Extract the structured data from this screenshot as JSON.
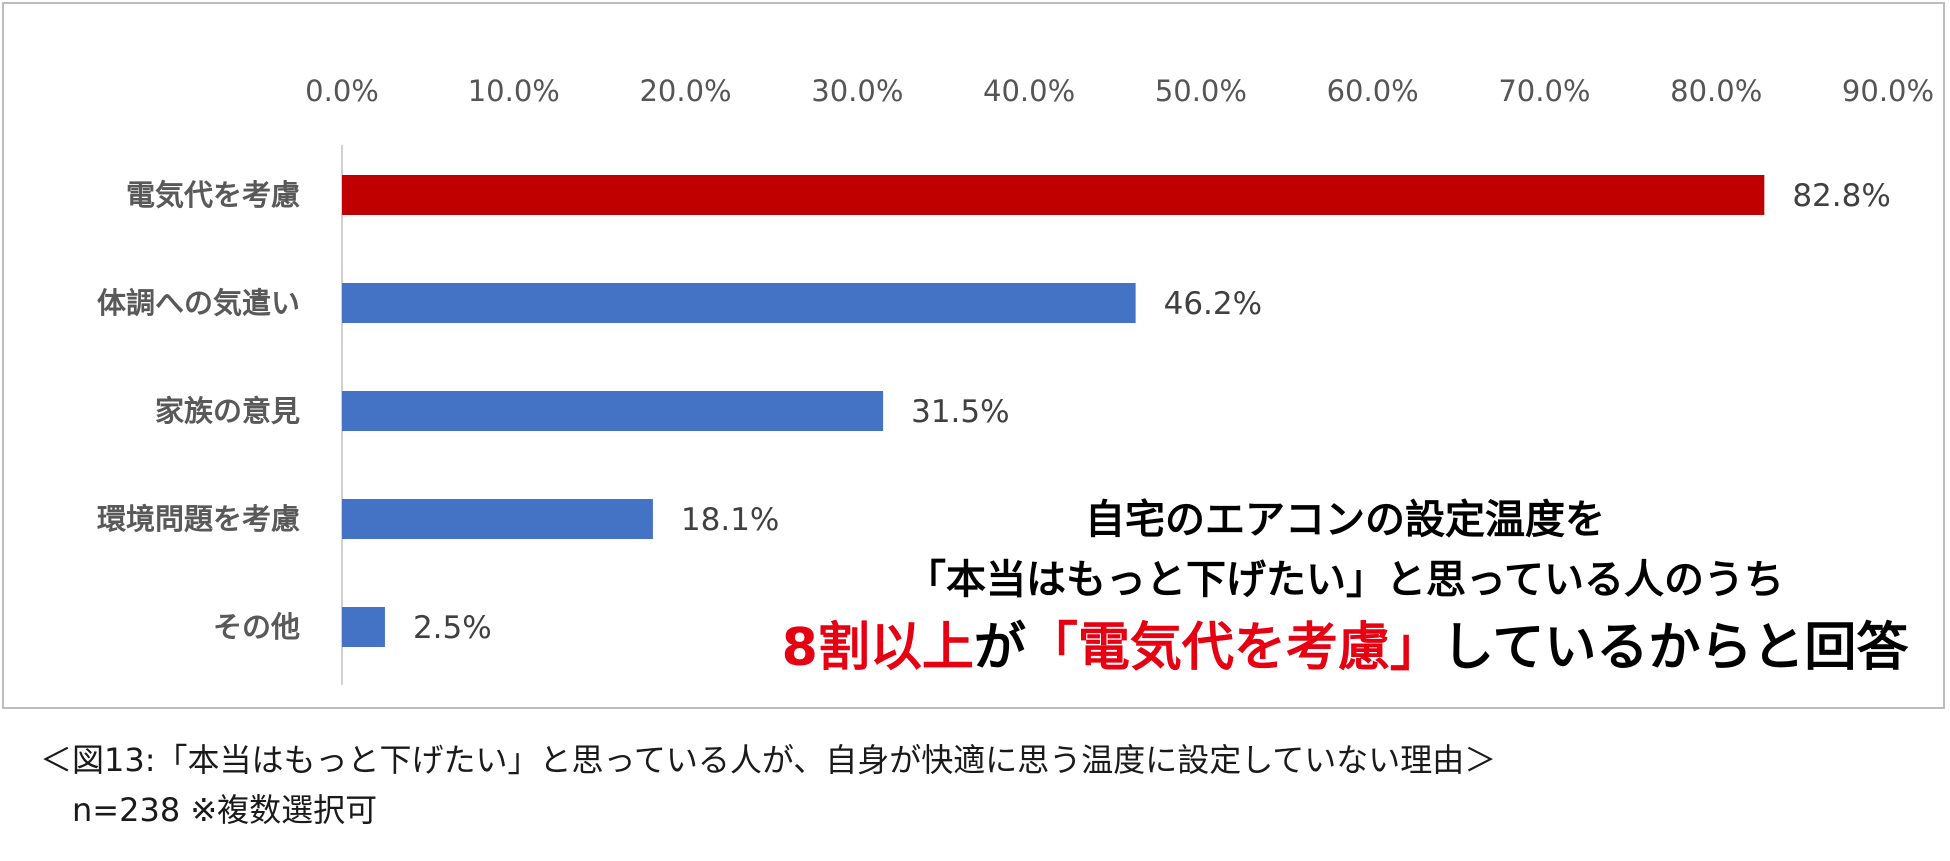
{
  "chart_data": {
    "type": "bar",
    "orientation": "horizontal",
    "categories": [
      "電気代を考慮",
      "体調への気遣い",
      "家族の意見",
      "環境問題を考慮",
      "その他"
    ],
    "values": [
      82.8,
      46.2,
      31.5,
      18.1,
      2.5
    ],
    "data_labels": [
      "82.8%",
      "46.2%",
      "31.5%",
      "18.1%",
      "2.5%"
    ],
    "xlim": [
      0,
      90
    ],
    "xticks": [
      "0.0%",
      "10.0%",
      "20.0%",
      "30.0%",
      "40.0%",
      "50.0%",
      "60.0%",
      "70.0%",
      "80.0%",
      "90.0%"
    ],
    "axis_position": "top",
    "grid": false,
    "colors": {
      "highlight": "#c00000",
      "default": "#4472c4"
    },
    "highlight_index": 0
  },
  "annotation": {
    "line1": "自宅のエアコンの設定温度を",
    "line2": "「本当はもっと下げたい」と思っている人のうち",
    "line3_red1": "8割以上",
    "line3_mid": "が",
    "line3_red2": "「電気代を考慮」",
    "line3_end": "しているからと回答",
    "accent_color": "#e60012"
  },
  "caption": {
    "line1": "＜図13:「本当はもっと下げたい」と思っている人が、自身が快適に思う温度に設定していない理由＞",
    "line2": "n=238 ※複数選択可"
  }
}
